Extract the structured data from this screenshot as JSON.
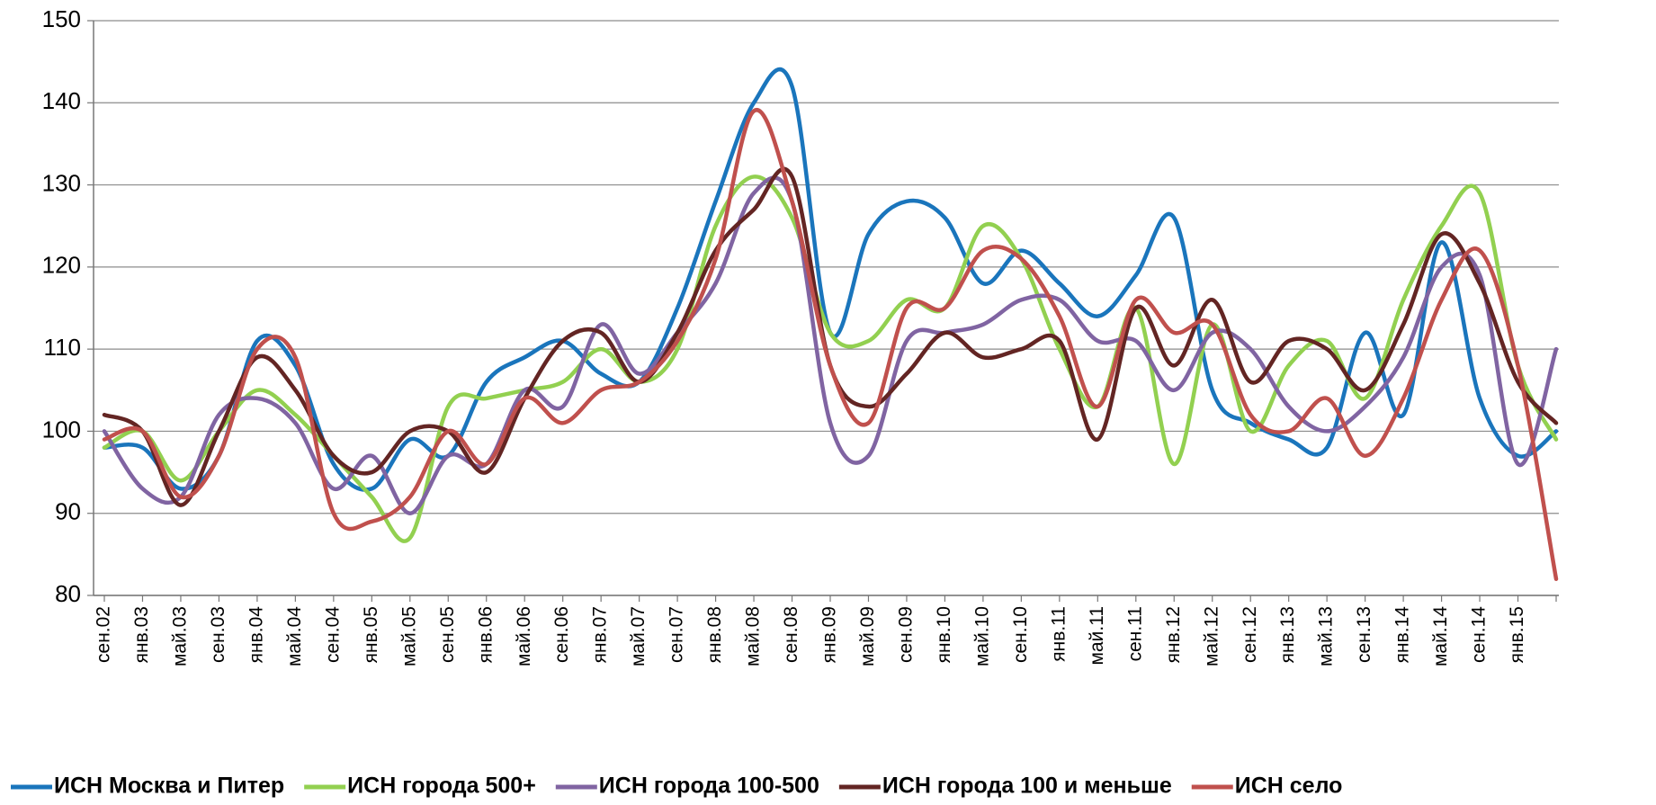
{
  "chart_data": {
    "type": "line",
    "categories": [
      "сен.02",
      "янв.03",
      "май.03",
      "сен.03",
      "янв.04",
      "май.04",
      "сен.04",
      "янв.05",
      "май.05",
      "сен.05",
      "янв.06",
      "май.06",
      "сен.06",
      "янв.07",
      "май.07",
      "сен.07",
      "янв.08",
      "май.08",
      "сен.08",
      "янв.09",
      "май.09",
      "сен.09",
      "янв.10",
      "май.10",
      "сен.10",
      "янв.11",
      "май.11",
      "сен.11",
      "янв.12",
      "май.12",
      "сен.12",
      "янв.13",
      "май.13",
      "сен.13",
      "янв.14",
      "май.14",
      "сен.14",
      "янв.15",
      null
    ],
    "series": [
      {
        "name": "ИСН Москва и Питер",
        "color": "#1a75bc",
        "values": [
          98,
          98,
          93,
          97,
          111,
          108,
          96,
          93,
          99,
          97,
          106,
          109,
          111,
          107,
          106,
          115,
          128,
          140,
          142,
          112,
          124,
          128,
          126,
          118,
          122,
          118,
          114,
          119,
          126,
          105,
          101,
          99,
          98,
          112,
          102,
          123,
          104,
          97,
          100
        ]
      },
      {
        "name": "ИСН города 500+",
        "color": "#92d050",
        "values": [
          98,
          100,
          94,
          100,
          105,
          102,
          97,
          92,
          87,
          103,
          104,
          105,
          106,
          110,
          106,
          110,
          125,
          131,
          126,
          112,
          111,
          116,
          115,
          125,
          121,
          110,
          103,
          115,
          96,
          113,
          100,
          108,
          111,
          104,
          116,
          125,
          129,
          108,
          99
        ]
      },
      {
        "name": "ИСН города 100-500",
        "color": "#8064a2",
        "values": [
          100,
          93,
          92,
          102,
          104,
          101,
          93,
          97,
          90,
          97,
          96,
          105,
          103,
          113,
          107,
          112,
          118,
          129,
          128,
          101,
          97,
          111,
          112,
          113,
          116,
          116,
          111,
          111,
          105,
          112,
          110,
          103,
          100,
          103,
          109,
          120,
          119,
          96,
          110
        ]
      },
      {
        "name": "ИСН города 100 и меньше",
        "color": "#632523",
        "values": [
          102,
          100,
          91,
          100,
          109,
          105,
          97,
          95,
          100,
          100,
          95,
          104,
          111,
          112,
          106,
          112,
          122,
          127,
          131,
          108,
          103,
          107,
          112,
          109,
          110,
          111,
          99,
          115,
          108,
          116,
          106,
          111,
          110,
          105,
          113,
          124,
          118,
          106,
          101
        ]
      },
      {
        "name": "ИСН село",
        "color": "#c0504d",
        "values": [
          99,
          100,
          92,
          97,
          110,
          109,
          90,
          89,
          92,
          100,
          96,
          104,
          101,
          105,
          106,
          111,
          121,
          139,
          128,
          108,
          101,
          115,
          115,
          122,
          121,
          114,
          103,
          116,
          112,
          113,
          102,
          100,
          104,
          97,
          104,
          116,
          122,
          108,
          82
        ]
      }
    ],
    "ylim": [
      80,
      150
    ],
    "yticks": [
      80,
      90,
      100,
      110,
      120,
      130,
      140,
      150
    ],
    "grid": true,
    "legend": "bottom"
  }
}
